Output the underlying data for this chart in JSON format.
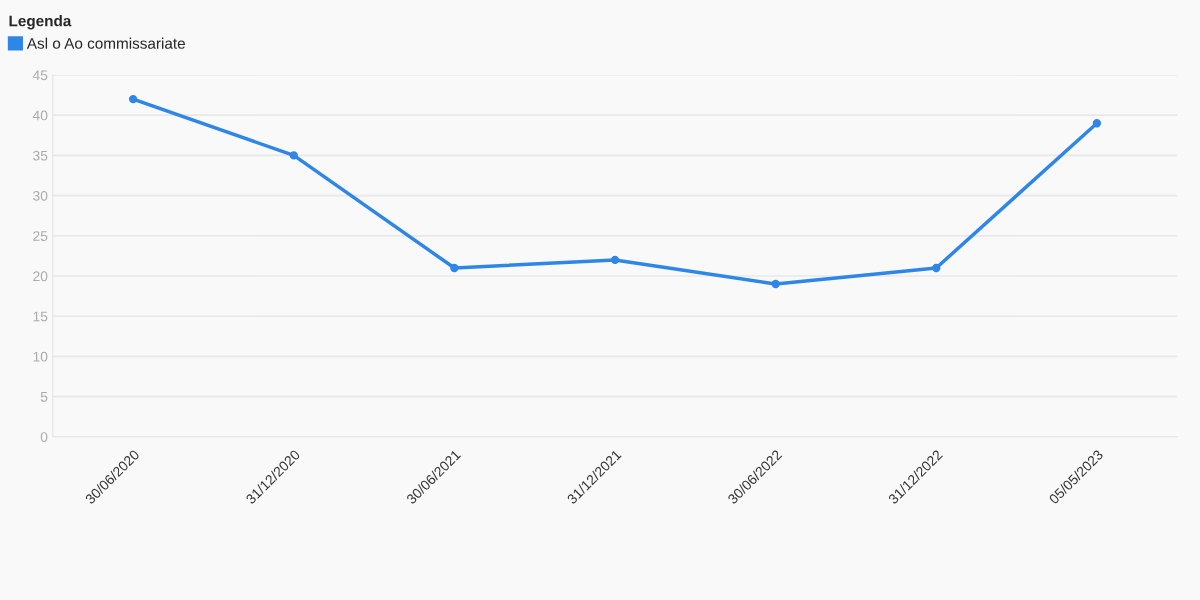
{
  "chart_data": {
    "type": "line",
    "legend_title": "Legenda",
    "categories": [
      "30/06/2020",
      "31/12/2020",
      "30/06/2021",
      "31/12/2021",
      "30/06/2022",
      "31/12/2022",
      "05/05/2023"
    ],
    "series": [
      {
        "name": "Asl o Ao commissariate",
        "color": "#2e86e8",
        "values": [
          42,
          35,
          21,
          22,
          19,
          21,
          39
        ]
      }
    ],
    "ylim": [
      0,
      45
    ],
    "yticks": [
      0,
      5,
      10,
      15,
      20,
      25,
      30,
      35,
      40,
      45
    ],
    "grid": "y",
    "legend": "top left",
    "marker": "circle",
    "line_style": "solid"
  }
}
